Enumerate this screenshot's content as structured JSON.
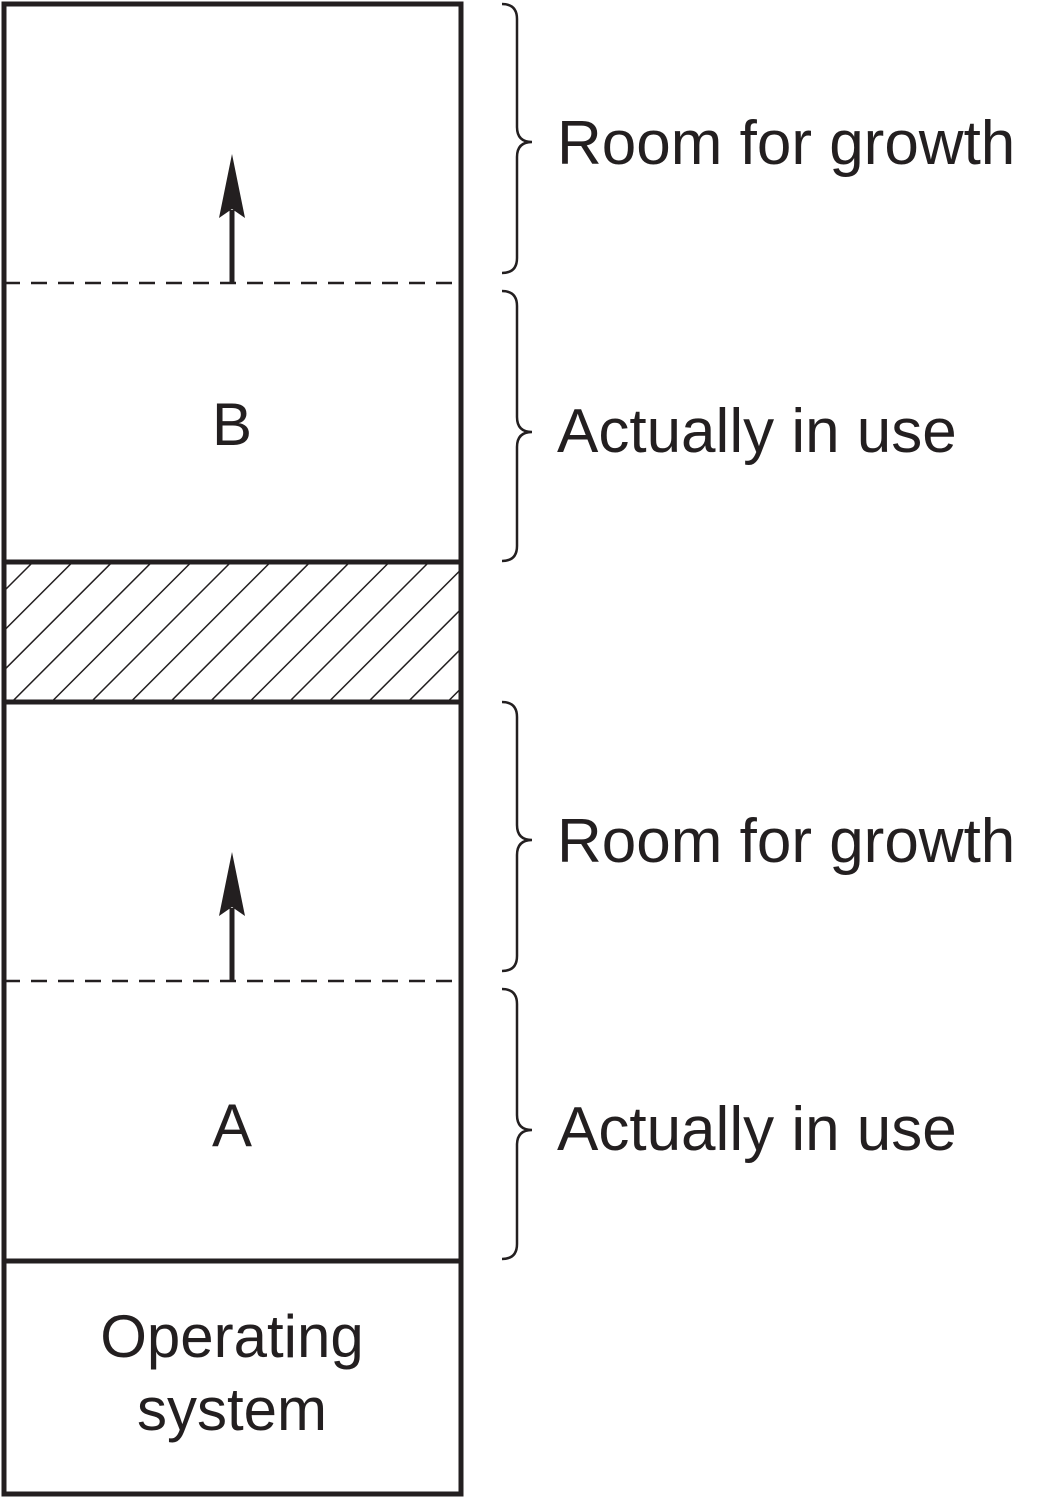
{
  "colors": {
    "ink": "#231f20",
    "background": "#ffffff"
  },
  "segments": {
    "process_a": {
      "label": "A"
    },
    "process_b": {
      "label": "B"
    },
    "operating_system": {
      "label_line1": "Operating",
      "label_line2": "system"
    }
  },
  "annotations": {
    "b_room_for_growth": "Room for growth",
    "b_actually_in_use": "Actually in use",
    "a_room_for_growth": "Room for growth",
    "a_actually_in_use": "Actually in use"
  }
}
